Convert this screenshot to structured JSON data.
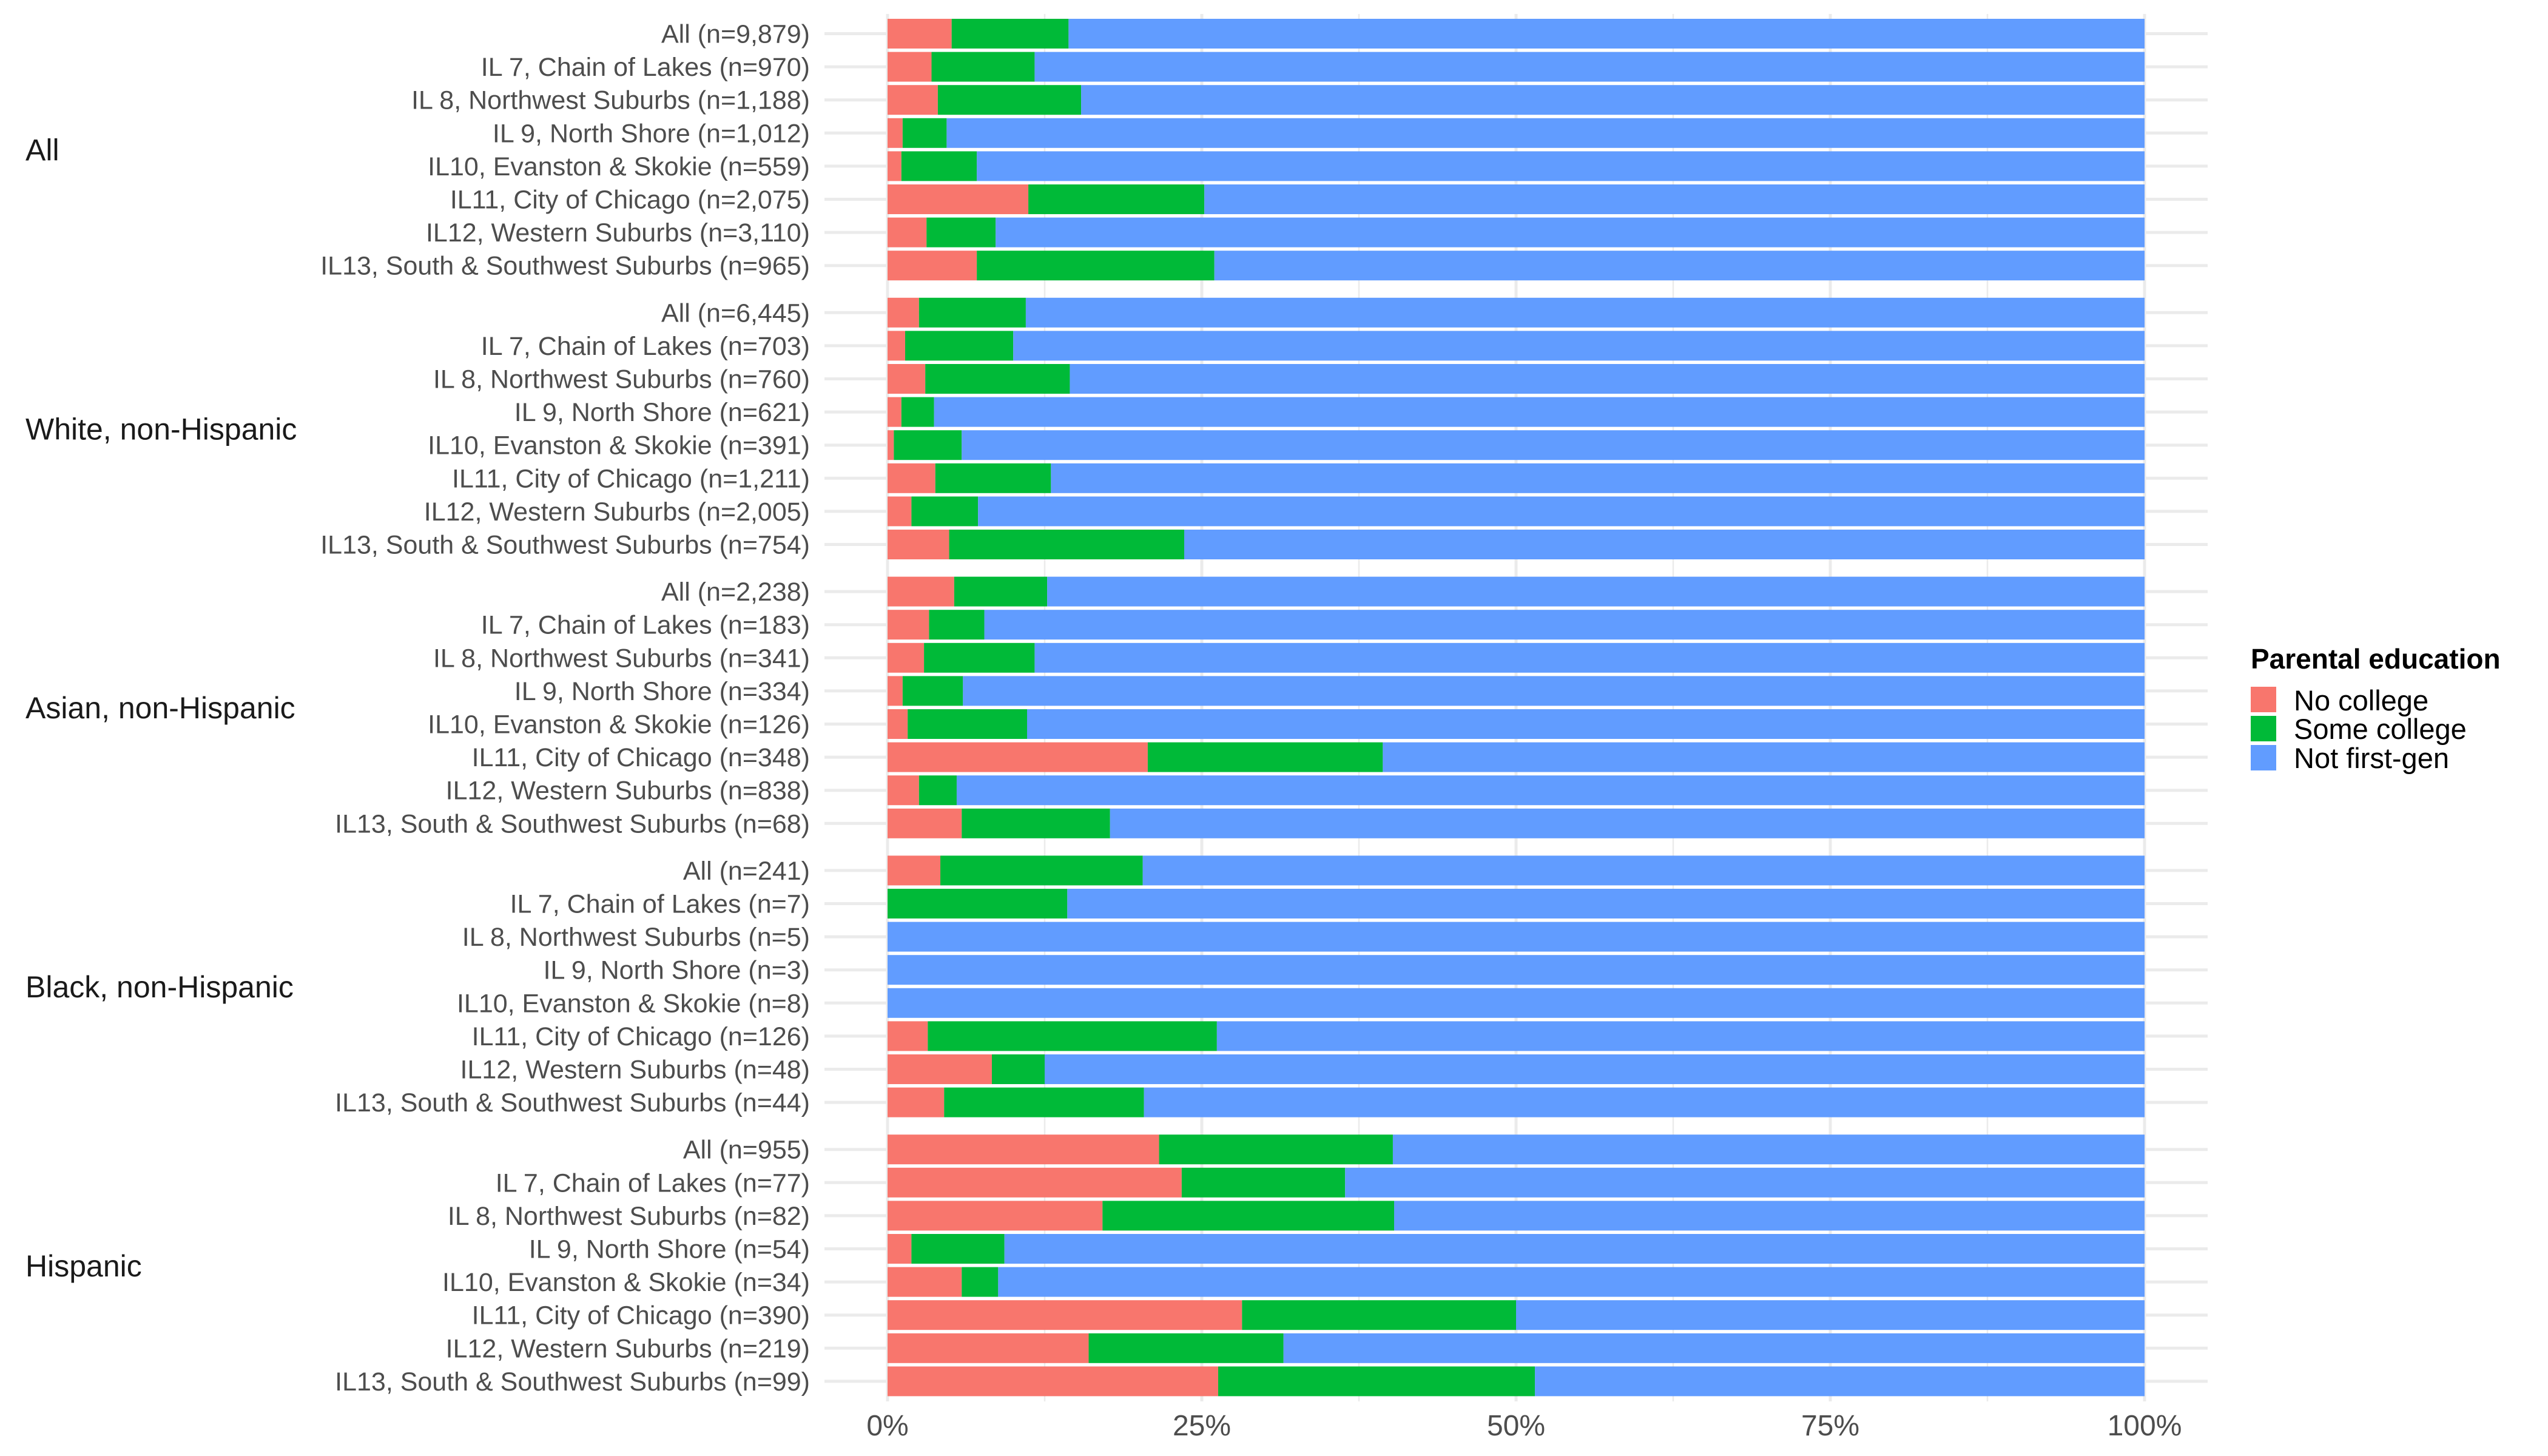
{
  "chart_data": {
    "type": "bar",
    "orientation": "horizontal",
    "stacked": true,
    "normalized": true,
    "title": "",
    "xlabel": "",
    "ylabel": "",
    "xlim": [
      0,
      100
    ],
    "grid": true,
    "x_ticks": [
      "0%",
      "25%",
      "50%",
      "75%",
      "100%"
    ],
    "x_tick_values": [
      0,
      25,
      50,
      75,
      100
    ],
    "legend": {
      "title": "Parental education",
      "position": "right",
      "entries": [
        {
          "key": "no_college",
          "label": "No college",
          "color": "#F8766D"
        },
        {
          "key": "some_college",
          "label": "Some college",
          "color": "#00BA38"
        },
        {
          "key": "not_first_gen",
          "label": "Not first-gen",
          "color": "#619CFF"
        }
      ]
    },
    "units": "percent of students",
    "groups": [
      {
        "label": "All",
        "rows": [
          {
            "label": "All (n=9,879)",
            "no_college": 5.1,
            "some_college": 9.3,
            "not_first_gen": 85.6
          },
          {
            "label": "IL 7, Chain of Lakes (n=970)",
            "no_college": 3.5,
            "some_college": 8.2,
            "not_first_gen": 88.3
          },
          {
            "label": "IL 8, Northwest Suburbs (n=1,188)",
            "no_college": 4.0,
            "some_college": 11.4,
            "not_first_gen": 84.6
          },
          {
            "label": "IL 9, North Shore (n=1,012)",
            "no_college": 1.2,
            "some_college": 3.5,
            "not_first_gen": 95.3
          },
          {
            "label": "IL10, Evanston & Skokie (n=559)",
            "no_college": 1.1,
            "some_college": 6.0,
            "not_first_gen": 92.9
          },
          {
            "label": "IL11, City of Chicago (n=2,075)",
            "no_college": 11.2,
            "some_college": 14.0,
            "not_first_gen": 74.8
          },
          {
            "label": "IL12, Western Suburbs (n=3,110)",
            "no_college": 3.1,
            "some_college": 5.5,
            "not_first_gen": 91.4
          },
          {
            "label": "IL13, South & Southwest Suburbs (n=965)",
            "no_college": 7.1,
            "some_college": 18.9,
            "not_first_gen": 74.0
          }
        ]
      },
      {
        "label": "White, non-Hispanic",
        "rows": [
          {
            "label": "All (n=6,445)",
            "no_college": 2.5,
            "some_college": 8.5,
            "not_first_gen": 89.0
          },
          {
            "label": "IL 7, Chain of Lakes (n=703)",
            "no_college": 1.4,
            "some_college": 8.6,
            "not_first_gen": 90.0
          },
          {
            "label": "IL 8, Northwest Suburbs (n=760)",
            "no_college": 3.0,
            "some_college": 11.5,
            "not_first_gen": 85.5
          },
          {
            "label": "IL 9, North Shore (n=621)",
            "no_college": 1.1,
            "some_college": 2.6,
            "not_first_gen": 96.3
          },
          {
            "label": "IL10, Evanston & Skokie (n=391)",
            "no_college": 0.5,
            "some_college": 5.4,
            "not_first_gen": 94.1
          },
          {
            "label": "IL11, City of Chicago (n=1,211)",
            "no_college": 3.8,
            "some_college": 9.2,
            "not_first_gen": 87.0
          },
          {
            "label": "IL12, Western Suburbs (n=2,005)",
            "no_college": 1.9,
            "some_college": 5.3,
            "not_first_gen": 92.8
          },
          {
            "label": "IL13, South & Southwest Suburbs (n=754)",
            "no_college": 4.9,
            "some_college": 18.7,
            "not_first_gen": 76.4
          }
        ]
      },
      {
        "label": "Asian, non-Hispanic",
        "rows": [
          {
            "label": "All (n=2,238)",
            "no_college": 5.3,
            "some_college": 7.4,
            "not_first_gen": 87.3
          },
          {
            "label": "IL 7, Chain of Lakes (n=183)",
            "no_college": 3.3,
            "some_college": 4.4,
            "not_first_gen": 92.3
          },
          {
            "label": "IL 8, Northwest Suburbs (n=341)",
            "no_college": 2.9,
            "some_college": 8.8,
            "not_first_gen": 88.3
          },
          {
            "label": "IL 9, North Shore (n=334)",
            "no_college": 1.2,
            "some_college": 4.8,
            "not_first_gen": 94.0
          },
          {
            "label": "IL10, Evanston & Skokie (n=126)",
            "no_college": 1.6,
            "some_college": 9.5,
            "not_first_gen": 88.9
          },
          {
            "label": "IL11, City of Chicago (n=348)",
            "no_college": 20.7,
            "some_college": 18.7,
            "not_first_gen": 60.6
          },
          {
            "label": "IL12, Western Suburbs (n=838)",
            "no_college": 2.5,
            "some_college": 3.0,
            "not_first_gen": 94.5
          },
          {
            "label": "IL13, South & Southwest Suburbs (n=68)",
            "no_college": 5.9,
            "some_college": 11.8,
            "not_first_gen": 82.3
          }
        ]
      },
      {
        "label": "Black, non-Hispanic",
        "rows": [
          {
            "label": "All (n=241)",
            "no_college": 4.2,
            "some_college": 16.1,
            "not_first_gen": 79.7
          },
          {
            "label": "IL 7, Chain of Lakes (n=7)",
            "no_college": 0.0,
            "some_college": 14.3,
            "not_first_gen": 85.7
          },
          {
            "label": "IL 8, Northwest Suburbs (n=5)",
            "no_college": 0.0,
            "some_college": 0.0,
            "not_first_gen": 100.0
          },
          {
            "label": "IL 9, North Shore (n=3)",
            "no_college": 0.0,
            "some_college": 0.0,
            "not_first_gen": 100.0
          },
          {
            "label": "IL10, Evanston & Skokie (n=8)",
            "no_college": 0.0,
            "some_college": 0.0,
            "not_first_gen": 100.0
          },
          {
            "label": "IL11, City of Chicago (n=126)",
            "no_college": 3.2,
            "some_college": 23.0,
            "not_first_gen": 73.8
          },
          {
            "label": "IL12, Western Suburbs (n=48)",
            "no_college": 8.3,
            "some_college": 4.2,
            "not_first_gen": 87.5
          },
          {
            "label": "IL13, South & Southwest Suburbs (n=44)",
            "no_college": 4.5,
            "some_college": 15.9,
            "not_first_gen": 79.6
          }
        ]
      },
      {
        "label": "Hispanic",
        "rows": [
          {
            "label": "All (n=955)",
            "no_college": 21.6,
            "some_college": 18.6,
            "not_first_gen": 59.8
          },
          {
            "label": "IL 7, Chain of Lakes (n=77)",
            "no_college": 23.4,
            "some_college": 13.0,
            "not_first_gen": 63.6
          },
          {
            "label": "IL 8, Northwest Suburbs (n=82)",
            "no_college": 17.1,
            "some_college": 23.2,
            "not_first_gen": 59.7
          },
          {
            "label": "IL 9, North Shore (n=54)",
            "no_college": 1.9,
            "some_college": 7.4,
            "not_first_gen": 90.7
          },
          {
            "label": "IL10, Evanston & Skokie (n=34)",
            "no_college": 5.9,
            "some_college": 2.9,
            "not_first_gen": 91.2
          },
          {
            "label": "IL11, City of Chicago (n=390)",
            "no_college": 28.2,
            "some_college": 21.8,
            "not_first_gen": 50.0
          },
          {
            "label": "IL12, Western Suburbs (n=219)",
            "no_college": 16.0,
            "some_college": 15.5,
            "not_first_gen": 68.5
          },
          {
            "label": "IL13, South & Southwest Suburbs (n=99)",
            "no_college": 26.3,
            "some_college": 25.2,
            "not_first_gen": 48.5
          }
        ]
      }
    ]
  }
}
